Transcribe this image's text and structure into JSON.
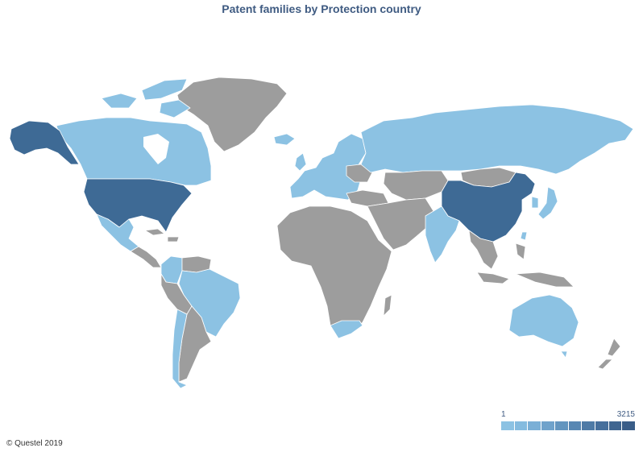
{
  "title": "Patent families by Protection country",
  "copyright": "© Questel 2019",
  "legend": {
    "min_label": "1",
    "max_label": "3215",
    "colors": [
      "#8cc2e3",
      "#84bbdf",
      "#7aafd6",
      "#6fa2cb",
      "#6395bf",
      "#5887b3",
      "#4e7aa6",
      "#466f9c",
      "#3f6590",
      "#3a5d88"
    ]
  },
  "colors": {
    "no_data": "#9d9d9d",
    "low": "#8cc2e3",
    "high": "#3e6a95"
  },
  "countries": [
    {
      "name": "United States",
      "level": "high"
    },
    {
      "name": "Alaska",
      "level": "high"
    },
    {
      "name": "China",
      "level": "high"
    },
    {
      "name": "Canada",
      "level": "low"
    },
    {
      "name": "Mexico",
      "level": "low"
    },
    {
      "name": "Brazil",
      "level": "low"
    },
    {
      "name": "Colombia",
      "level": "low"
    },
    {
      "name": "Chile",
      "level": "low"
    },
    {
      "name": "Russia",
      "level": "low"
    },
    {
      "name": "Europe",
      "level": "low"
    },
    {
      "name": "India",
      "level": "low"
    },
    {
      "name": "Japan",
      "level": "low"
    },
    {
      "name": "South Korea",
      "level": "low"
    },
    {
      "name": "Taiwan",
      "level": "low"
    },
    {
      "name": "Australia",
      "level": "low"
    },
    {
      "name": "South Africa",
      "level": "low"
    },
    {
      "name": "Iceland",
      "level": "low"
    },
    {
      "name": "Greenland",
      "level": "none"
    },
    {
      "name": "Africa",
      "level": "none"
    },
    {
      "name": "Middle East",
      "level": "none"
    },
    {
      "name": "Central Asia",
      "level": "none"
    },
    {
      "name": "Mongolia",
      "level": "none"
    },
    {
      "name": "Southeast Asia",
      "level": "none"
    },
    {
      "name": "Indonesia",
      "level": "none"
    },
    {
      "name": "New Zealand",
      "level": "none"
    },
    {
      "name": "Madagascar",
      "level": "none"
    },
    {
      "name": "Central America",
      "level": "none"
    },
    {
      "name": "Venezuela",
      "level": "none"
    },
    {
      "name": "Peru",
      "level": "none"
    },
    {
      "name": "Argentina",
      "level": "none"
    },
    {
      "name": "Ukraine",
      "level": "none"
    },
    {
      "name": "Kazakhstan",
      "level": "none"
    }
  ]
}
